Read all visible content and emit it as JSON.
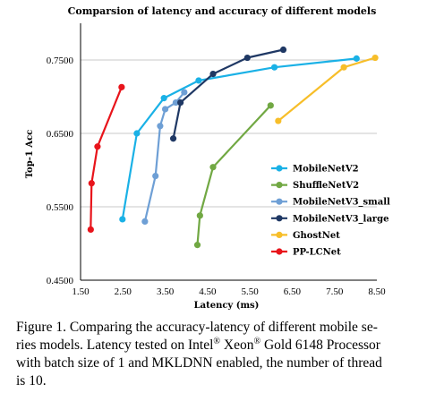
{
  "chart_data": {
    "type": "line",
    "title": "Comparsion of latency and accuracy of different models",
    "xlabel": "Latency (ms)",
    "ylabel": "Top-1 Acc",
    "xlim": [
      1.5,
      8.5
    ],
    "ylim": [
      0.45,
      0.8
    ],
    "x_ticks": [
      "1.50",
      "2.50",
      "3.50",
      "4.50",
      "5.50",
      "6.50",
      "7.50",
      "8.50"
    ],
    "y_ticks": [
      "0.4500",
      "0.5500",
      "0.6500",
      "0.7500"
    ],
    "grid": "horizontal at 0.5500, 0.6500, 0.7500",
    "legend_position": "right",
    "series": [
      {
        "name": "MobileNetV2",
        "color": "#1ab1e6",
        "x": [
          2.49,
          2.83,
          3.47,
          4.29,
          6.08,
          8.02
        ],
        "y": [
          0.533,
          0.65,
          0.698,
          0.722,
          0.74,
          0.752
        ]
      },
      {
        "name": "ShuffleNetV2",
        "color": "#71a843",
        "x": [
          4.26,
          4.32,
          4.63,
          5.99
        ],
        "y": [
          0.498,
          0.538,
          0.604,
          0.688
        ]
      },
      {
        "name": "MobileNetV3_small",
        "color": "#6e9fd5",
        "x": [
          3.02,
          3.27,
          3.38,
          3.5,
          3.75,
          3.95
        ],
        "y": [
          0.53,
          0.592,
          0.66,
          0.683,
          0.692,
          0.706
        ]
      },
      {
        "name": "MobileNetV3_large",
        "color": "#1f3864",
        "x": [
          3.69,
          3.86,
          4.63,
          5.44,
          6.29
        ],
        "y": [
          0.643,
          0.692,
          0.731,
          0.753,
          0.764
        ]
      },
      {
        "name": "GhostNet",
        "color": "#f7be29",
        "x": [
          6.17,
          7.72,
          8.46
        ],
        "y": [
          0.667,
          0.74,
          0.753
        ]
      },
      {
        "name": "PP-LCNet",
        "color": "#e8141b",
        "x": [
          1.74,
          1.76,
          1.9,
          2.47
        ],
        "y": [
          0.519,
          0.582,
          0.632,
          0.713
        ]
      }
    ]
  },
  "caption": {
    "p1": "Figure 1. Comparing the accuracy-latency of different mobile se-",
    "p2": "ries models. Latency tested on Intel",
    "reg1": "®",
    "p3": " Xeon",
    "reg2": "®",
    "p4": " Gold 6148 Processor",
    "p5": "with batch size of 1 and MKLDNN enabled, the number of thread",
    "p6": "is 10."
  }
}
